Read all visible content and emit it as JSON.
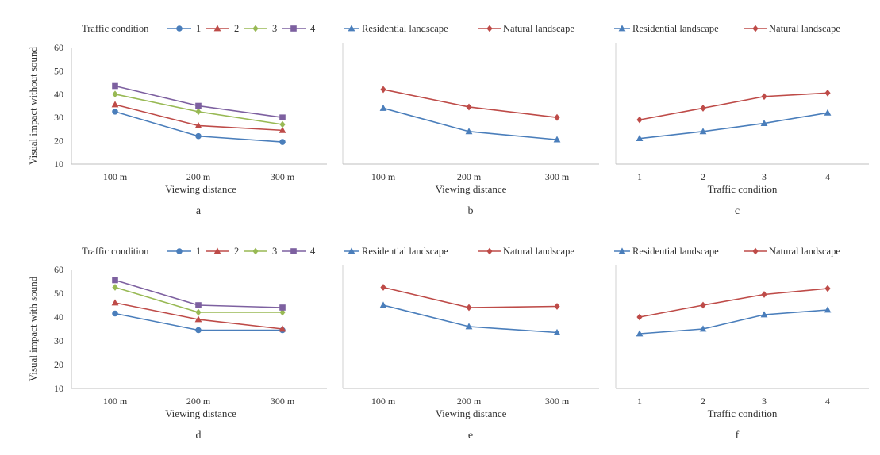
{
  "chart_data": [
    {
      "type": "line",
      "panel": "a",
      "categories": [
        "100 m",
        "200 m",
        "300 m"
      ],
      "xlabel": "Viewing distance",
      "ylabel": "Visual impact without sound",
      "ylim": [
        10,
        60
      ],
      "yticks": [
        10,
        20,
        30,
        40,
        50,
        60
      ],
      "legend_title": "Traffic condition",
      "legend_position": "top",
      "grid": false,
      "series": [
        {
          "name": "1",
          "color": "#4a7ebb",
          "marker": "circle",
          "values": [
            32.5,
            22,
            19.5
          ]
        },
        {
          "name": "2",
          "color": "#be4b48",
          "marker": "triangle",
          "values": [
            35.5,
            26.5,
            24.5
          ]
        },
        {
          "name": "3",
          "color": "#98b954",
          "marker": "diamond",
          "values": [
            40,
            32.5,
            27
          ]
        },
        {
          "name": "4",
          "color": "#7d60a0",
          "marker": "square",
          "values": [
            43.5,
            35,
            30
          ]
        }
      ]
    },
    {
      "type": "line",
      "panel": "b",
      "categories": [
        "100 m",
        "200 m",
        "300 m"
      ],
      "xlabel": "Viewing distance",
      "ylim": [
        10,
        60
      ],
      "legend_position": "top",
      "grid": false,
      "series": [
        {
          "name": "Residential landscape",
          "color": "#4a7ebb",
          "marker": "triangle",
          "values": [
            34,
            24,
            20.5
          ]
        },
        {
          "name": "Natural landscape",
          "color": "#be4b48",
          "marker": "diamond",
          "values": [
            42,
            34.5,
            30
          ]
        }
      ]
    },
    {
      "type": "line",
      "panel": "c",
      "categories": [
        "1",
        "2",
        "3",
        "4"
      ],
      "xlabel": "Traffic condition",
      "ylim": [
        10,
        60
      ],
      "legend_position": "top",
      "grid": false,
      "series": [
        {
          "name": "Residential landscape",
          "color": "#4a7ebb",
          "marker": "triangle",
          "values": [
            21,
            24,
            27.5,
            32
          ]
        },
        {
          "name": "Natural landscape",
          "color": "#be4b48",
          "marker": "diamond",
          "values": [
            29,
            34,
            39,
            40.5
          ]
        }
      ]
    },
    {
      "type": "line",
      "panel": "d",
      "categories": [
        "100 m",
        "200 m",
        "300 m"
      ],
      "xlabel": "Viewing distance",
      "ylabel": "Visual impact with sound",
      "ylim": [
        10,
        60
      ],
      "yticks": [
        10,
        20,
        30,
        40,
        50,
        60
      ],
      "legend_title": "Traffic condition",
      "legend_position": "top",
      "grid": false,
      "series": [
        {
          "name": "1",
          "color": "#4a7ebb",
          "marker": "circle",
          "values": [
            41.5,
            34.5,
            34.5
          ]
        },
        {
          "name": "2",
          "color": "#be4b48",
          "marker": "triangle",
          "values": [
            46,
            39,
            35
          ]
        },
        {
          "name": "3",
          "color": "#98b954",
          "marker": "diamond",
          "values": [
            52.5,
            42,
            42
          ]
        },
        {
          "name": "4",
          "color": "#7d60a0",
          "marker": "square",
          "values": [
            55.5,
            45,
            44
          ]
        }
      ]
    },
    {
      "type": "line",
      "panel": "e",
      "categories": [
        "100 m",
        "200 m",
        "300 m"
      ],
      "xlabel": "Viewing distance",
      "ylim": [
        10,
        60
      ],
      "legend_position": "top",
      "grid": false,
      "series": [
        {
          "name": "Residential landscape",
          "color": "#4a7ebb",
          "marker": "triangle",
          "values": [
            45,
            36,
            33.5
          ]
        },
        {
          "name": "Natural landscape",
          "color": "#be4b48",
          "marker": "diamond",
          "values": [
            52.5,
            44,
            44.5
          ]
        }
      ]
    },
    {
      "type": "line",
      "panel": "f",
      "categories": [
        "1",
        "2",
        "3",
        "4"
      ],
      "xlabel": "Traffic condition",
      "ylim": [
        10,
        60
      ],
      "legend_position": "top",
      "grid": false,
      "series": [
        {
          "name": "Residential landscape",
          "color": "#4a7ebb",
          "marker": "triangle",
          "values": [
            33,
            35,
            41,
            43
          ]
        },
        {
          "name": "Natural landscape",
          "color": "#be4b48",
          "marker": "diamond",
          "values": [
            40,
            45,
            49.5,
            52
          ]
        }
      ]
    }
  ]
}
